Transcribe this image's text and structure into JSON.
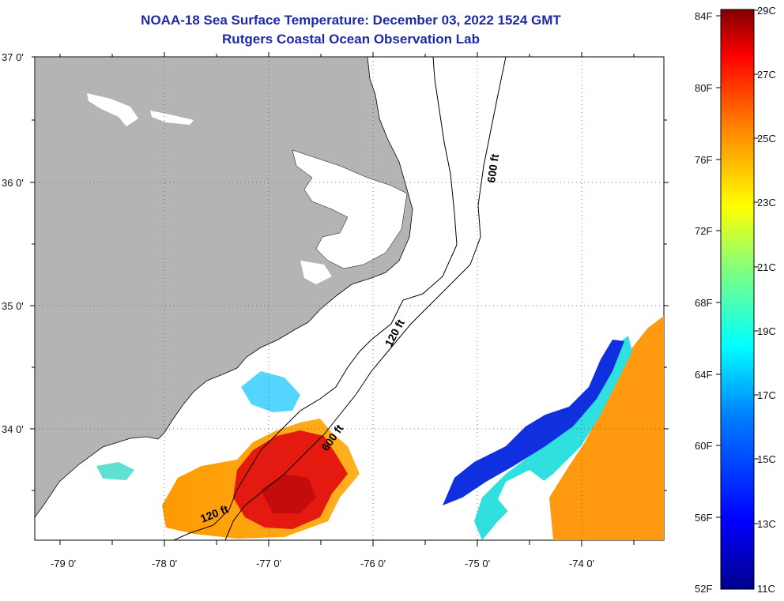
{
  "header": {
    "title": "NOAA-18 Sea Surface Temperature:  December 03, 2022 1524 GMT",
    "subtitle": "Rutgers Coastal Ocean Observation Lab"
  },
  "map": {
    "lat_labels": [
      "37 0'",
      "36 0'",
      "35 0'",
      "34 0'"
    ],
    "lon_labels": [
      "-79 0'",
      "-78 0'",
      "-77 0'",
      "-76 0'",
      "-75 0'",
      "-74 0'"
    ],
    "contours": [
      "120 ft",
      "600 ft",
      "600 ft",
      "120 ft"
    ],
    "land_color": "#b4b4b4",
    "grid": "dotted"
  },
  "colorbar": {
    "fahrenheit": [
      "84F",
      "80F",
      "76F",
      "72F",
      "68F",
      "64F",
      "60F",
      "56F",
      "52F"
    ],
    "celsius": [
      "29C",
      "27C",
      "25C",
      "23C",
      "21C",
      "19C",
      "17C",
      "15C",
      "13C",
      "11C"
    ],
    "colors": [
      "#00008f",
      "#0000ff",
      "#0080ff",
      "#00ffff",
      "#80ff80",
      "#ffff00",
      "#ff8000",
      "#ff0000",
      "#800000"
    ]
  }
}
